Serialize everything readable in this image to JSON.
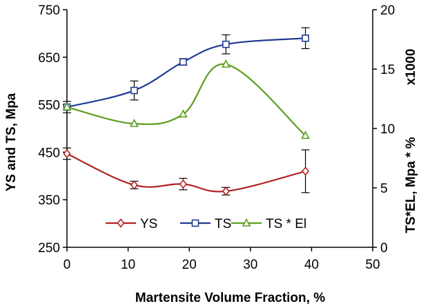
{
  "chart_data": {
    "type": "line",
    "title": "",
    "xlabel": "Martensite Volume Fraction, %",
    "ylabel_left": "YS and TS, Mpa",
    "ylabel_right": "TS*EL, Mpa * %",
    "right_multiplier": "x1000",
    "xlim": [
      0,
      50
    ],
    "ylim_left": [
      250,
      750
    ],
    "ylim_right": [
      0,
      20
    ],
    "x_ticks": [
      "0",
      "10",
      "20",
      "30",
      "40",
      "50"
    ],
    "y_left_ticks": [
      "250",
      "350",
      "450",
      "550",
      "650",
      "750"
    ],
    "y_right_ticks": [
      "0",
      "5",
      "10",
      "15",
      "20"
    ],
    "grid": false,
    "legend_position": "lower-center",
    "series": [
      {
        "name": "YS",
        "axis": "left",
        "color": "#b22222",
        "marker": "diamond",
        "x": [
          0,
          11,
          19,
          26,
          39
        ],
        "values": [
          447,
          381,
          383,
          368,
          410
        ],
        "errors": [
          12,
          8,
          12,
          8,
          45
        ]
      },
      {
        "name": "TS",
        "axis": "left",
        "color": "#1f3a93",
        "marker": "square",
        "x": [
          0,
          11,
          19,
          26,
          39
        ],
        "values": [
          545,
          580,
          640,
          677,
          690
        ],
        "errors": [
          12,
          20,
          7,
          20,
          22
        ]
      },
      {
        "name": "TS * El",
        "axis": "right",
        "color": "#5c9e1c",
        "marker": "triangle",
        "x": [
          0,
          11,
          19,
          26,
          39
        ],
        "values": [
          11.8,
          10.4,
          11.2,
          15.4,
          9.4
        ],
        "errors": [
          0,
          0,
          0,
          0,
          0
        ]
      }
    ]
  }
}
